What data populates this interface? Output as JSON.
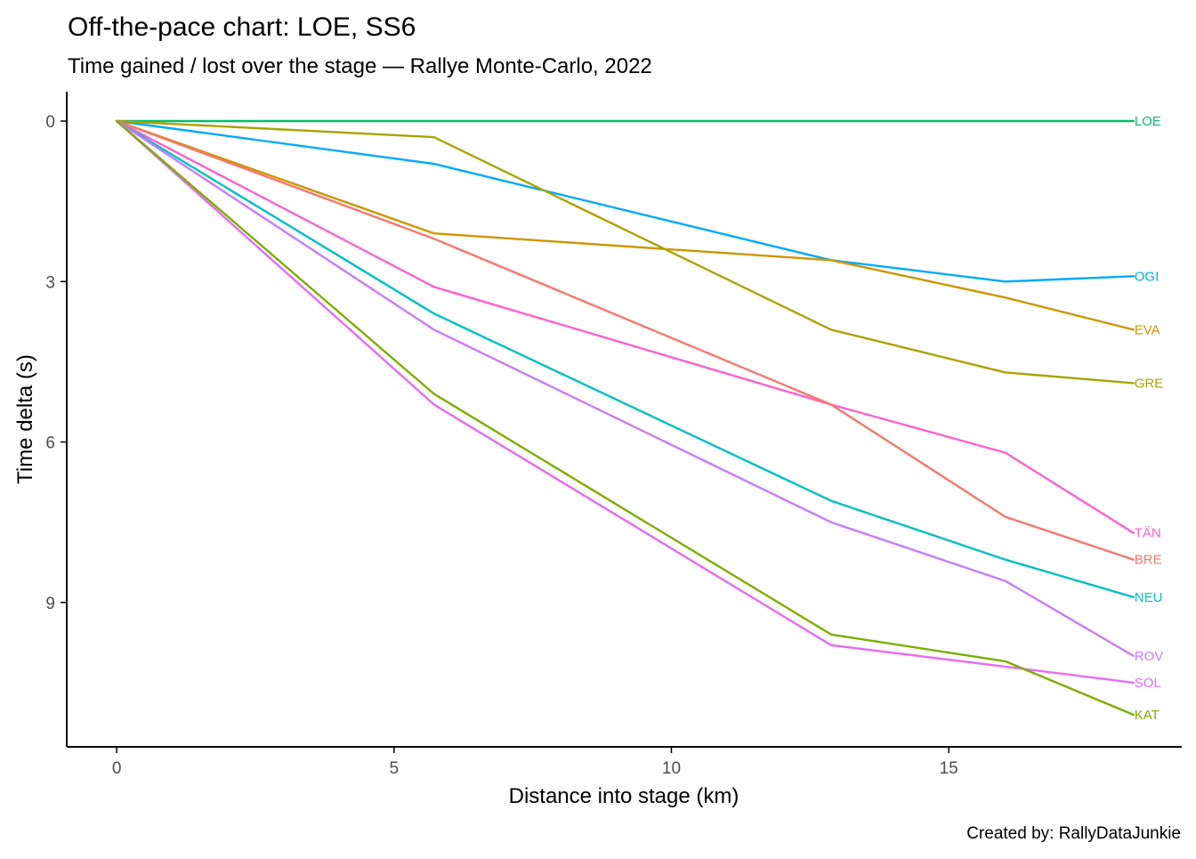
{
  "chart_data": {
    "type": "line",
    "title": "Off-the-pace chart: LOE, SS6",
    "subtitle": "Time gained / lost over the stage — Rallye Monte-Carlo, 2022",
    "caption": "Created by: RallyDataJunkie",
    "xlabel": "Distance into stage (km)",
    "ylabel": "Time delta (s)",
    "xlim": [
      -0.9,
      19.2
    ],
    "ylim": [
      -0.55,
      11.7
    ],
    "y_reversed": true,
    "xticks": [
      0,
      5,
      10,
      15
    ],
    "yticks": [
      0,
      3,
      6,
      9
    ],
    "grid": false,
    "legend": "direct labels at line ends",
    "x": [
      0,
      5.72,
      12.88,
      16.02,
      18.33
    ],
    "series": [
      {
        "name": "LOE",
        "color": "#00BE67",
        "values": [
          0,
          0,
          0,
          0,
          0
        ]
      },
      {
        "name": "OGI",
        "color": "#00A9FF",
        "values": [
          0,
          0.8,
          2.6,
          3.0,
          2.9
        ]
      },
      {
        "name": "EVA",
        "color": "#CD9600",
        "values": [
          0,
          2.1,
          2.6,
          3.3,
          3.9
        ]
      },
      {
        "name": "GRE",
        "color": "#ABA300",
        "values": [
          0,
          0.3,
          3.9,
          4.7,
          4.9
        ]
      },
      {
        "name": "TÄN",
        "color": "#FF61CC",
        "values": [
          0,
          3.1,
          5.3,
          6.2,
          7.7
        ]
      },
      {
        "name": "BRE",
        "color": "#F8766D",
        "values": [
          0,
          2.2,
          5.3,
          7.4,
          8.2
        ]
      },
      {
        "name": "NEU",
        "color": "#00BFC4",
        "values": [
          0,
          3.6,
          7.1,
          8.2,
          8.9
        ]
      },
      {
        "name": "ROV",
        "color": "#C77CFF",
        "values": [
          0,
          3.9,
          7.5,
          8.6,
          10.0
        ]
      },
      {
        "name": "SOL",
        "color": "#E76BF3",
        "values": [
          0,
          5.3,
          9.8,
          10.2,
          10.5
        ]
      },
      {
        "name": "KAT",
        "color": "#7CAE00",
        "values": [
          0,
          5.1,
          9.6,
          10.1,
          11.1
        ]
      }
    ]
  }
}
